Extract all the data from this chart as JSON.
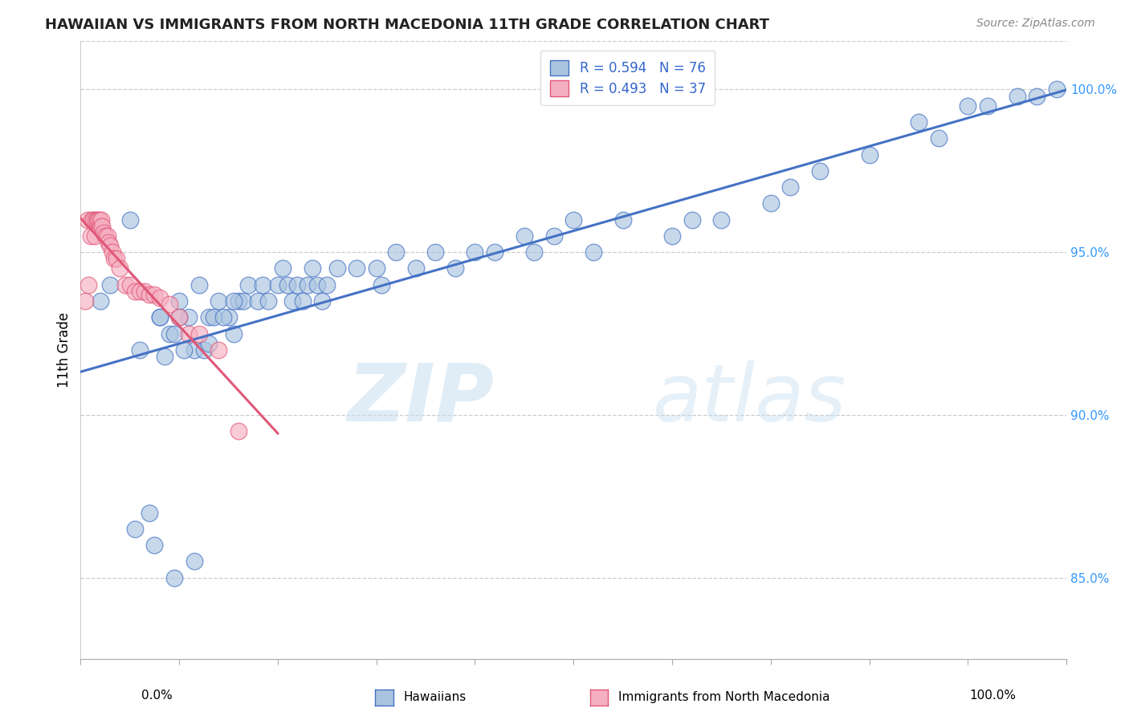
{
  "title": "HAWAIIAN VS IMMIGRANTS FROM NORTH MACEDONIA 11TH GRADE CORRELATION CHART",
  "source": "Source: ZipAtlas.com",
  "ylabel": "11th Grade",
  "xlim": [
    0.0,
    1.0
  ],
  "ylim": [
    0.825,
    1.015
  ],
  "blue_color": "#aac4e0",
  "pink_color": "#f5afc0",
  "blue_line_color": "#4472c4",
  "pink_line_color": "#e05878",
  "legend_blue_label": "R = 0.594   N = 76",
  "legend_pink_label": "R = 0.493   N = 37",
  "hawaiians_label": "Hawaiians",
  "immigrants_label": "Immigrants from North Macedonia",
  "watermark_zip": "ZIP",
  "watermark_atlas": "atlas",
  "ytick_vals": [
    0.85,
    0.9,
    0.95,
    1.0
  ],
  "ytick_labels": [
    "85.0%",
    "90.0%",
    "95.0%",
    "100.0%"
  ],
  "blue_x": [
    0.02,
    0.03,
    0.05,
    0.07,
    0.08,
    0.09,
    0.1,
    0.11,
    0.12,
    0.13,
    0.14,
    0.15,
    0.155,
    0.16,
    0.165,
    0.17,
    0.18,
    0.185,
    0.19,
    0.2,
    0.205,
    0.21,
    0.215,
    0.22,
    0.225,
    0.23,
    0.235,
    0.24,
    0.245,
    0.25,
    0.26,
    0.28,
    0.3,
    0.305,
    0.32,
    0.34,
    0.36,
    0.38,
    0.4,
    0.42,
    0.45,
    0.46,
    0.48,
    0.5,
    0.52,
    0.55,
    0.6,
    0.62,
    0.65,
    0.7,
    0.72,
    0.75,
    0.8,
    0.85,
    0.87,
    0.9,
    0.92,
    0.95,
    0.97,
    0.99,
    0.06,
    0.08,
    0.1,
    0.115,
    0.125,
    0.135,
    0.145,
    0.155,
    0.085,
    0.095,
    0.105,
    0.13,
    0.115,
    0.095,
    0.075,
    0.055
  ],
  "blue_y": [
    0.935,
    0.94,
    0.96,
    0.87,
    0.93,
    0.925,
    0.935,
    0.93,
    0.94,
    0.93,
    0.935,
    0.93,
    0.925,
    0.935,
    0.935,
    0.94,
    0.935,
    0.94,
    0.935,
    0.94,
    0.945,
    0.94,
    0.935,
    0.94,
    0.935,
    0.94,
    0.945,
    0.94,
    0.935,
    0.94,
    0.945,
    0.945,
    0.945,
    0.94,
    0.95,
    0.945,
    0.95,
    0.945,
    0.95,
    0.95,
    0.955,
    0.95,
    0.955,
    0.96,
    0.95,
    0.96,
    0.955,
    0.96,
    0.96,
    0.965,
    0.97,
    0.975,
    0.98,
    0.99,
    0.985,
    0.995,
    0.995,
    0.998,
    0.998,
    1.0,
    0.92,
    0.93,
    0.93,
    0.92,
    0.92,
    0.93,
    0.93,
    0.935,
    0.918,
    0.925,
    0.92,
    0.922,
    0.855,
    0.85,
    0.86,
    0.865
  ],
  "pink_x": [
    0.005,
    0.007,
    0.008,
    0.01,
    0.011,
    0.013,
    0.014,
    0.015,
    0.017,
    0.018,
    0.019,
    0.02,
    0.021,
    0.022,
    0.023,
    0.025,
    0.027,
    0.028,
    0.03,
    0.032,
    0.034,
    0.036,
    0.04,
    0.045,
    0.05,
    0.055,
    0.06,
    0.065,
    0.07,
    0.075,
    0.08,
    0.09,
    0.1,
    0.11,
    0.12,
    0.14,
    0.16
  ],
  "pink_y": [
    0.935,
    0.96,
    0.94,
    0.955,
    0.96,
    0.96,
    0.955,
    0.96,
    0.96,
    0.96,
    0.96,
    0.958,
    0.96,
    0.958,
    0.956,
    0.955,
    0.955,
    0.953,
    0.952,
    0.95,
    0.948,
    0.948,
    0.945,
    0.94,
    0.94,
    0.938,
    0.938,
    0.938,
    0.937,
    0.937,
    0.936,
    0.934,
    0.93,
    0.925,
    0.925,
    0.92,
    0.895
  ]
}
